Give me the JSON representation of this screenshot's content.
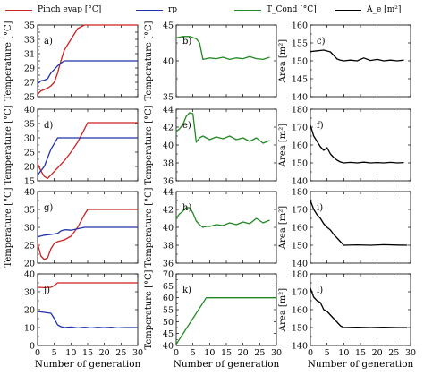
{
  "legend": [
    {
      "label": "Pinch evap [°C]",
      "color": "#cc2222"
    },
    {
      "label": "rp",
      "color": "#2233aa"
    },
    {
      "label": "T_Cond [°C]",
      "color": "#228822"
    },
    {
      "label": "A_e [m²]",
      "color": "#000000"
    }
  ],
  "chart_data": [
    {
      "id": "a",
      "type": "line",
      "panel_label": "a)",
      "ylabel": "Temperature [°C]",
      "xlabel": "",
      "ylim": [
        25,
        35
      ],
      "yticks": [
        25,
        26,
        27,
        28,
        29,
        30,
        31,
        32,
        33,
        34,
        35
      ],
      "xlim": [
        0,
        30
      ],
      "xticks": [
        0,
        5,
        10,
        15,
        20,
        25,
        30
      ],
      "show_xticklabels": false,
      "show_ylabel": true,
      "series": [
        {
          "color": "#cc2222",
          "x": [
            0,
            1,
            2,
            3,
            4,
            5,
            6,
            7,
            8,
            10,
            12,
            14,
            30
          ],
          "y": [
            25.3,
            25.8,
            26.0,
            26.2,
            26.5,
            27.0,
            28.3,
            30.0,
            31.5,
            33.0,
            34.5,
            35,
            35
          ]
        },
        {
          "color": "#2233aa",
          "x": [
            0,
            1,
            2,
            3,
            4,
            5,
            6,
            7,
            8,
            30
          ],
          "y": [
            26.8,
            27.2,
            27.3,
            27.5,
            28.3,
            28.8,
            29.3,
            29.7,
            30,
            30
          ]
        }
      ]
    },
    {
      "id": "b",
      "type": "line",
      "panel_label": "b)",
      "ylabel": "Temperature [°C]",
      "xlabel": "",
      "ylim": [
        35,
        45
      ],
      "yticks": [
        35,
        40,
        45
      ],
      "xlim": [
        0,
        30
      ],
      "xticks": [
        0,
        5,
        10,
        15,
        20,
        25,
        30
      ],
      "show_xticklabels": false,
      "show_ylabel": true,
      "series": [
        {
          "color": "#228822",
          "x": [
            0,
            2,
            4,
            6,
            7,
            8,
            9,
            10,
            12,
            14,
            16,
            18,
            20,
            22,
            24,
            26,
            28
          ],
          "y": [
            43.2,
            43.4,
            43.4,
            43.1,
            42.5,
            40.2,
            40.3,
            40.4,
            40.3,
            40.5,
            40.2,
            40.4,
            40.3,
            40.6,
            40.3,
            40.2,
            40.5
          ]
        }
      ]
    },
    {
      "id": "c",
      "type": "line",
      "panel_label": "c)",
      "ylabel": "Area [m²]",
      "xlabel": "",
      "ylim": [
        140,
        160
      ],
      "yticks": [
        140,
        145,
        150,
        155,
        160
      ],
      "xlim": [
        0,
        30
      ],
      "xticks": [
        0,
        5,
        10,
        15,
        20,
        25,
        30
      ],
      "show_xticklabels": false,
      "show_ylabel": true,
      "series": [
        {
          "color": "#000000",
          "x": [
            0,
            2,
            4,
            6,
            8,
            9,
            10,
            12,
            14,
            16,
            18,
            20,
            22,
            24,
            26,
            28
          ],
          "y": [
            152.6,
            152.8,
            153.0,
            152.5,
            150.5,
            150.2,
            150.0,
            150.2,
            150.0,
            150.8,
            150.1,
            150.4,
            150.0,
            150.2,
            150.0,
            150.2
          ]
        }
      ]
    },
    {
      "id": "d",
      "type": "line",
      "panel_label": "d)",
      "ylabel": "Temperature [°C]",
      "xlabel": "",
      "ylim": [
        15,
        40
      ],
      "yticks": [
        15,
        20,
        25,
        30,
        35,
        40
      ],
      "xlim": [
        0,
        30
      ],
      "xticks": [
        0,
        5,
        10,
        15,
        20,
        25,
        30
      ],
      "show_xticklabels": false,
      "show_ylabel": true,
      "series": [
        {
          "color": "#cc2222",
          "x": [
            0,
            1,
            2,
            3,
            4,
            6,
            8,
            10,
            12,
            14,
            15,
            30
          ],
          "y": [
            21,
            18.5,
            16.5,
            15.8,
            17,
            19.5,
            22,
            25,
            28.5,
            33,
            35.3,
            35.3
          ]
        },
        {
          "color": "#2233aa",
          "x": [
            0,
            1,
            2,
            3,
            4,
            5,
            6,
            30
          ],
          "y": [
            17,
            18.5,
            20,
            23,
            26,
            28,
            30,
            30
          ]
        }
      ]
    },
    {
      "id": "e",
      "type": "line",
      "panel_label": "e)",
      "ylabel": "Temperature [°C]",
      "xlabel": "",
      "ylim": [
        36,
        44
      ],
      "yticks": [
        36,
        38,
        40,
        42,
        44
      ],
      "xlim": [
        0,
        30
      ],
      "xticks": [
        0,
        5,
        10,
        15,
        20,
        25,
        30
      ],
      "show_xticklabels": false,
      "show_ylabel": true,
      "series": [
        {
          "color": "#228822",
          "x": [
            0,
            1,
            2,
            3,
            4,
            5,
            6,
            7,
            8,
            10,
            12,
            14,
            16,
            18,
            20,
            22,
            24,
            26,
            28
          ],
          "y": [
            41.5,
            41.8,
            42.3,
            43.2,
            43.6,
            43.5,
            40.3,
            40.8,
            41.0,
            40.6,
            40.9,
            40.7,
            41.0,
            40.6,
            40.8,
            40.4,
            40.8,
            40.2,
            40.5
          ]
        }
      ]
    },
    {
      "id": "f",
      "type": "line",
      "panel_label": "f)",
      "ylabel": "Area [m²]",
      "xlabel": "",
      "ylim": [
        140,
        180
      ],
      "yticks": [
        140,
        150,
        160,
        170,
        180
      ],
      "xlim": [
        0,
        30
      ],
      "xticks": [
        0,
        5,
        10,
        15,
        20,
        25,
        30
      ],
      "show_xticklabels": false,
      "show_ylabel": true,
      "series": [
        {
          "color": "#000000",
          "x": [
            0,
            1,
            2,
            3,
            4,
            5,
            6,
            7,
            8,
            9,
            10,
            12,
            14,
            16,
            18,
            20,
            22,
            24,
            26,
            28
          ],
          "y": [
            171,
            165,
            162,
            159,
            157,
            158.5,
            155,
            153,
            151.5,
            150.5,
            150,
            150.3,
            150,
            150.4,
            150,
            150.2,
            150,
            150.3,
            150,
            150.2
          ]
        }
      ]
    },
    {
      "id": "g",
      "type": "line",
      "panel_label": "g)",
      "ylabel": "Temperature [°C]",
      "xlabel": "",
      "ylim": [
        20,
        40
      ],
      "yticks": [
        20,
        25,
        30,
        35,
        40
      ],
      "xlim": [
        0,
        30
      ],
      "xticks": [
        0,
        5,
        10,
        15,
        20,
        25,
        30
      ],
      "show_xticklabels": false,
      "show_ylabel": true,
      "series": [
        {
          "color": "#cc2222",
          "x": [
            0,
            1,
            2,
            3,
            4,
            5,
            6,
            8,
            10,
            12,
            14,
            15,
            30
          ],
          "y": [
            25.5,
            22,
            21,
            21.5,
            24,
            25.5,
            26,
            26.5,
            27.5,
            30,
            33.5,
            35,
            35
          ]
        },
        {
          "color": "#2233aa",
          "x": [
            0,
            2,
            4,
            6,
            7,
            8,
            9,
            10,
            12,
            14,
            30
          ],
          "y": [
            27.3,
            27.8,
            28,
            28.3,
            29,
            29.3,
            29.3,
            29.2,
            29.6,
            30,
            30
          ]
        }
      ]
    },
    {
      "id": "h",
      "type": "line",
      "panel_label": "h)",
      "ylabel": "Temperature [°C]",
      "xlabel": "",
      "ylim": [
        36,
        44
      ],
      "yticks": [
        36,
        38,
        40,
        42,
        44
      ],
      "xlim": [
        0,
        30
      ],
      "xticks": [
        0,
        5,
        10,
        15,
        20,
        25,
        30
      ],
      "show_xticklabels": false,
      "show_ylabel": true,
      "series": [
        {
          "color": "#228822",
          "x": [
            0,
            1,
            2,
            3,
            4,
            5,
            6,
            7,
            8,
            9,
            10,
            12,
            14,
            16,
            18,
            20,
            22,
            24,
            26,
            28
          ],
          "y": [
            41.0,
            41.5,
            41.8,
            42.2,
            42.2,
            41.6,
            40.7,
            40.3,
            40.0,
            40.1,
            40.1,
            40.3,
            40.2,
            40.5,
            40.3,
            40.6,
            40.4,
            41.0,
            40.5,
            40.8
          ]
        }
      ]
    },
    {
      "id": "i",
      "type": "line",
      "panel_label": "i)",
      "ylabel": "Area [m²]",
      "xlabel": "",
      "ylim": [
        140,
        180
      ],
      "yticks": [
        140,
        150,
        160,
        170,
        180
      ],
      "xlim": [
        0,
        30
      ],
      "xticks": [
        0,
        5,
        10,
        15,
        20,
        25,
        30
      ],
      "show_xticklabels": false,
      "show_ylabel": true,
      "series": [
        {
          "color": "#000000",
          "x": [
            0,
            1,
            2,
            3,
            4,
            5,
            6,
            7,
            8,
            9,
            10,
            14,
            18,
            22,
            26,
            29
          ],
          "y": [
            175,
            170,
            167,
            165,
            162,
            160,
            158.5,
            156,
            154,
            152,
            150,
            150.2,
            150,
            150.3,
            150.1,
            150
          ]
        }
      ]
    },
    {
      "id": "j",
      "type": "line",
      "panel_label": "j)",
      "ylabel": "Temperature [°C]",
      "xlabel": "Number of generation",
      "ylim": [
        0,
        40
      ],
      "yticks": [
        0,
        10,
        20,
        30,
        40
      ],
      "xlim": [
        0,
        30
      ],
      "xticks": [
        0,
        5,
        10,
        15,
        20,
        25,
        30
      ],
      "show_xticklabels": true,
      "show_ylabel": false,
      "series": [
        {
          "color": "#cc2222",
          "x": [
            0,
            2,
            4,
            5,
            6,
            7,
            30
          ],
          "y": [
            32.5,
            32.3,
            32.5,
            33.5,
            35,
            35,
            35
          ]
        },
        {
          "color": "#2233aa",
          "x": [
            0,
            2,
            4,
            5,
            6,
            7,
            8,
            10,
            12,
            14,
            16,
            18,
            20,
            22,
            24,
            26,
            28,
            30
          ],
          "y": [
            19,
            18.5,
            18,
            15,
            11.5,
            10.5,
            10,
            10.3,
            9.8,
            10.2,
            9.8,
            10.1,
            9.9,
            10.2,
            9.8,
            10,
            10,
            10
          ]
        }
      ]
    },
    {
      "id": "k",
      "type": "line",
      "panel_label": "k)",
      "ylabel": "Temperature [°C]",
      "xlabel": "Number of generation",
      "ylim": [
        40,
        70
      ],
      "yticks": [
        40,
        45,
        50,
        55,
        60,
        65,
        70
      ],
      "xlim": [
        0,
        30
      ],
      "xticks": [
        0,
        5,
        10,
        15,
        20,
        25,
        30
      ],
      "show_xticklabels": true,
      "show_ylabel": true,
      "series": [
        {
          "color": "#228822",
          "x": [
            0,
            9,
            30
          ],
          "y": [
            40.5,
            60,
            60
          ]
        }
      ]
    },
    {
      "id": "l",
      "type": "line",
      "panel_label": "l)",
      "ylabel": "Area [m²]",
      "xlabel": "Number of generation",
      "ylim": [
        140,
        180
      ],
      "yticks": [
        140,
        150,
        160,
        170,
        180
      ],
      "xlim": [
        0,
        30
      ],
      "xticks": [
        0,
        5,
        10,
        15,
        20,
        25,
        30
      ],
      "show_xticklabels": true,
      "show_ylabel": true,
      "series": [
        {
          "color": "#000000",
          "x": [
            0,
            1,
            2,
            3,
            4,
            5,
            6,
            7,
            8,
            9,
            10,
            14,
            18,
            22,
            26,
            29
          ],
          "y": [
            172,
            167,
            165,
            164,
            160,
            159,
            157,
            155,
            153,
            151,
            150,
            150.2,
            150,
            150.2,
            150,
            150
          ]
        }
      ]
    }
  ]
}
